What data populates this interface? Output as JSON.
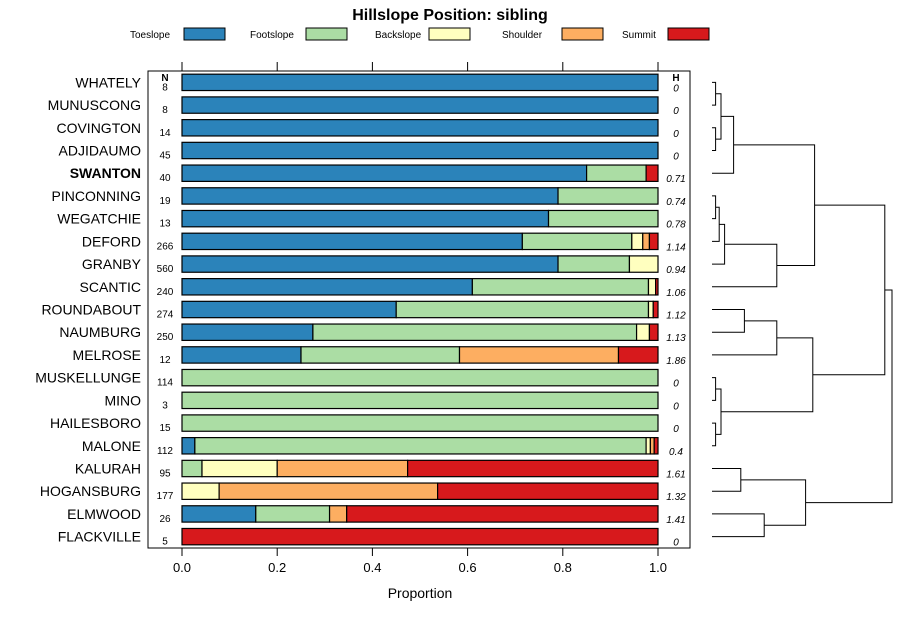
{
  "chart_data": {
    "type": "bar",
    "orientation": "horizontal-stacked",
    "title": "Hillslope Position: sibling",
    "xlabel": "Proportion",
    "ylabel": "",
    "xlim": [
      0,
      1
    ],
    "x_ticks": [
      "0.0",
      "0.2",
      "0.4",
      "0.6",
      "0.8",
      "1.0"
    ],
    "n_header": "N",
    "h_header": "H",
    "highlight": "SWANTON",
    "legend": [
      {
        "name": "Toeslope",
        "color": "#2b83ba"
      },
      {
        "name": "Footslope",
        "color": "#abdda4"
      },
      {
        "name": "Backslope",
        "color": "#ffffbf"
      },
      {
        "name": "Shoulder",
        "color": "#fdae61"
      },
      {
        "name": "Summit",
        "color": "#d7191c"
      }
    ],
    "categories": [
      "WHATELY",
      "MUNUSCONG",
      "COVINGTON",
      "ADJIDAUMO",
      "SWANTON",
      "PINCONNING",
      "WEGATCHIE",
      "DEFORD",
      "GRANBY",
      "SCANTIC",
      "ROUNDABOUT",
      "NAUMBURG",
      "MELROSE",
      "MUSKELLUNGE",
      "MINO",
      "HAILESBORO",
      "MALONE",
      "KALURAH",
      "HOGANSBURG",
      "ELMWOOD",
      "FLACKVILLE"
    ],
    "n": [
      "8",
      "8",
      "14",
      "45",
      "40",
      "19",
      "13",
      "266",
      "560",
      "240",
      "274",
      "250",
      "12",
      "114",
      "3",
      "15",
      "112",
      "95",
      "177",
      "26",
      "5"
    ],
    "h": [
      "0",
      "0",
      "0",
      "0",
      "0.71",
      "0.74",
      "0.78",
      "1.14",
      "0.94",
      "1.06",
      "1.12",
      "1.13",
      "1.86",
      "0",
      "0",
      "0",
      "0.4",
      "1.61",
      "1.32",
      "1.41",
      "0"
    ],
    "series": [
      {
        "name": "Toeslope",
        "values": [
          1,
          1,
          1,
          1,
          0.85,
          0.79,
          0.77,
          0.715,
          0.79,
          0.61,
          0.45,
          0.275,
          0.25,
          0,
          0,
          0,
          0.027,
          0,
          0,
          0.155,
          0
        ]
      },
      {
        "name": "Footslope",
        "values": [
          0,
          0,
          0,
          0,
          0.125,
          0.21,
          0.23,
          0.23,
          0.15,
          0.37,
          0.53,
          0.68,
          0.333,
          1,
          1,
          1,
          0.948,
          0.042,
          0,
          0.155,
          0
        ]
      },
      {
        "name": "Backslope",
        "values": [
          0,
          0,
          0,
          0,
          0,
          0,
          0,
          0.023,
          0.06,
          0.015,
          0.01,
          0.027,
          0,
          0,
          0,
          0,
          0.009,
          0.158,
          0.078,
          0,
          0
        ]
      },
      {
        "name": "Shoulder",
        "values": [
          0,
          0,
          0,
          0,
          0,
          0,
          0,
          0.014,
          0,
          0,
          0,
          0,
          0.334,
          0,
          0,
          0,
          0.008,
          0.274,
          0.459,
          0.036,
          0
        ]
      },
      {
        "name": "Summit",
        "values": [
          0,
          0,
          0,
          0,
          0.025,
          0,
          0,
          0.018,
          0,
          0.005,
          0.01,
          0.018,
          0.083,
          0,
          0,
          0,
          0.008,
          0.526,
          0.463,
          0.654,
          1
        ]
      }
    ],
    "dendrogram": {
      "type": "dendrogram",
      "leaf_order": [
        "WHATELY",
        "MUNUSCONG",
        "COVINGTON",
        "ADJIDAUMO",
        "SWANTON",
        "PINCONNING",
        "WEGATCHIE",
        "DEFORD",
        "GRANBY",
        "SCANTIC",
        "ROUNDABOUT",
        "NAUMBURG",
        "MELROSE",
        "MUSKELLUNGE",
        "MINO",
        "HAILESBORO",
        "MALONE",
        "KALURAH",
        "HOGANSBURG",
        "ELMWOOD",
        "FLACKVILLE"
      ],
      "merges": [
        {
          "a": "WHATELY",
          "b": "MUNUSCONG",
          "height": 0.02
        },
        {
          "a": "COVINGTON",
          "b": "ADJIDAUMO",
          "height": 0.02
        },
        {
          "a": "m1",
          "b": "m2",
          "height": 0.05
        },
        {
          "a": "m3",
          "b": "SWANTON",
          "height": 0.12
        },
        {
          "a": "PINCONNING",
          "b": "WEGATCHIE",
          "height": 0.02
        },
        {
          "a": "m5",
          "b": "DEFORD",
          "height": 0.04
        },
        {
          "a": "m6",
          "b": "GRANBY",
          "height": 0.07
        },
        {
          "a": "m7",
          "b": "SCANTIC",
          "height": 0.36
        },
        {
          "a": "m4",
          "b": "m8",
          "height": 0.57
        },
        {
          "a": "ROUNDABOUT",
          "b": "NAUMBURG",
          "height": 0.18
        },
        {
          "a": "m10",
          "b": "MELROSE",
          "height": 0.36
        },
        {
          "a": "MUSKELLUNGE",
          "b": "MINO",
          "height": 0.02
        },
        {
          "a": "HAILESBORO",
          "b": "MALONE",
          "height": 0.02
        },
        {
          "a": "m12",
          "b": "m13",
          "height": 0.05
        },
        {
          "a": "m11",
          "b": "m14",
          "height": 0.56
        },
        {
          "a": "m9",
          "b": "m15",
          "height": 0.96
        },
        {
          "a": "KALURAH",
          "b": "HOGANSBURG",
          "height": 0.16
        },
        {
          "a": "ELMWOOD",
          "b": "FLACKVILLE",
          "height": 0.29
        },
        {
          "a": "m17",
          "b": "m18",
          "height": 0.52
        },
        {
          "a": "m16",
          "b": "m19",
          "height": 1.0
        }
      ]
    }
  }
}
